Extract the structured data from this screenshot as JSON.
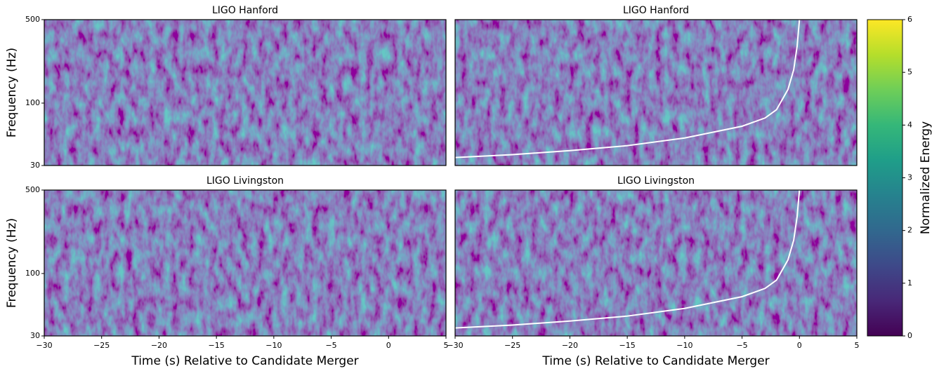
{
  "chart_data": [
    {
      "type": "heatmap",
      "title": "LIGO Hanford",
      "ylabel": "Frequency (Hz)",
      "xlim": [
        -30,
        5
      ],
      "ylim": [
        30,
        500
      ],
      "yscale": "log",
      "yticks": [
        30,
        100,
        500
      ]
    },
    {
      "type": "heatmap",
      "title": "LIGO Hanford",
      "xlim": [
        -30,
        5
      ],
      "ylim": [
        30,
        500
      ],
      "yscale": "log",
      "series": [
        {
          "color": "#ffffff",
          "x": [
            -30,
            -25,
            -20,
            -15,
            -10,
            -5,
            -3,
            -2,
            -1,
            -0.5,
            -0.2,
            0
          ],
          "values": [
            35,
            37,
            40,
            44,
            51,
            64,
            75,
            88,
            130,
            190,
            300,
            500
          ]
        }
      ]
    },
    {
      "type": "heatmap",
      "title": "LIGO Livingston",
      "ylabel": "Frequency (Hz)",
      "xlabel": "Time (s) Relative to Candidate Merger",
      "xlim": [
        -30,
        5
      ],
      "ylim": [
        30,
        500
      ],
      "yscale": "log",
      "yticks": [
        30,
        100,
        500
      ],
      "xticks": [
        {
          "value": -30,
          "label": "−30"
        },
        {
          "value": -25,
          "label": "−25"
        },
        {
          "value": -20,
          "label": "−20"
        },
        {
          "value": -15,
          "label": "−15"
        },
        {
          "value": -10,
          "label": "−10"
        },
        {
          "value": -5,
          "label": "−5"
        },
        0,
        5
      ]
    },
    {
      "type": "heatmap",
      "title": "LIGO Livingston",
      "xlabel": "Time (s) Relative to Candidate Merger",
      "xlim": [
        -30,
        5
      ],
      "ylim": [
        30,
        500
      ],
      "yscale": "log",
      "xticks": [
        {
          "value": -30,
          "label": "−30"
        },
        {
          "value": -25,
          "label": "−25"
        },
        {
          "value": -20,
          "label": "−20"
        },
        {
          "value": -15,
          "label": "−15"
        },
        {
          "value": -10,
          "label": "−10"
        },
        {
          "value": -5,
          "label": "−5"
        },
        0,
        5
      ],
      "series": [
        {
          "color": "#ffffff",
          "x": [
            -30,
            -25,
            -20,
            -15,
            -10,
            -5,
            -3,
            -2,
            -1,
            -0.5,
            -0.2,
            0
          ],
          "values": [
            35,
            37,
            40,
            44,
            51,
            64,
            75,
            88,
            130,
            190,
            300,
            500
          ]
        }
      ]
    }
  ],
  "colorbar": {
    "label": "Normalized Energy",
    "lim": [
      0,
      6
    ],
    "ticks": [
      0,
      1,
      2,
      3,
      4,
      5,
      6
    ],
    "colormap": "viridis"
  }
}
